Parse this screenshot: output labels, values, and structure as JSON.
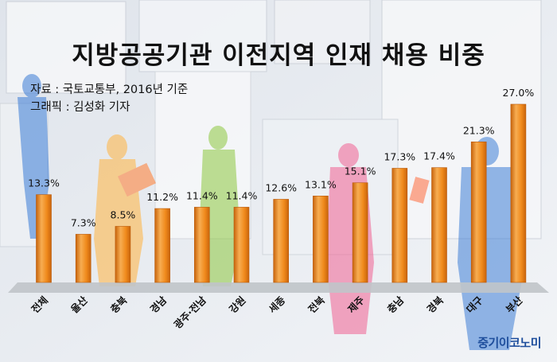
{
  "header": {
    "title": "지방공공기관 이전지역 인재 채용 비중",
    "source": "자료 : 국토교통부, 2016년 기준",
    "credit": "그래픽 : 김성화 기자"
  },
  "footer": {
    "brand": "중기이코노미"
  },
  "colors": {
    "bar_top": "#f7ad52",
    "bar_mid": "#f08a1c",
    "bar_dark": "#c8640c",
    "floor": "#c0c4c9"
  },
  "chart_data": {
    "type": "bar",
    "title": "지방공공기관 이전지역 인재 채용 비중",
    "xlabel": "",
    "ylabel": "",
    "categories": [
      "전체",
      "울산",
      "충북",
      "경남",
      "광주·전남",
      "강원",
      "세종",
      "전북",
      "제주",
      "충남",
      "경북",
      "대구",
      "부산"
    ],
    "values": [
      13.3,
      7.3,
      8.5,
      11.2,
      11.4,
      11.4,
      12.6,
      13.1,
      15.1,
      17.3,
      17.4,
      21.3,
      27.0
    ],
    "data_labels": [
      "13.3%",
      "7.3%",
      "8.5%",
      "11.2%",
      "11.4%",
      "11.4%",
      "12.6%",
      "13.1%",
      "15.1%",
      "17.3%",
      "17.4%",
      "21.3%",
      "27.0%"
    ],
    "ylim": [
      0,
      27
    ],
    "grid": false,
    "legend": "none"
  }
}
